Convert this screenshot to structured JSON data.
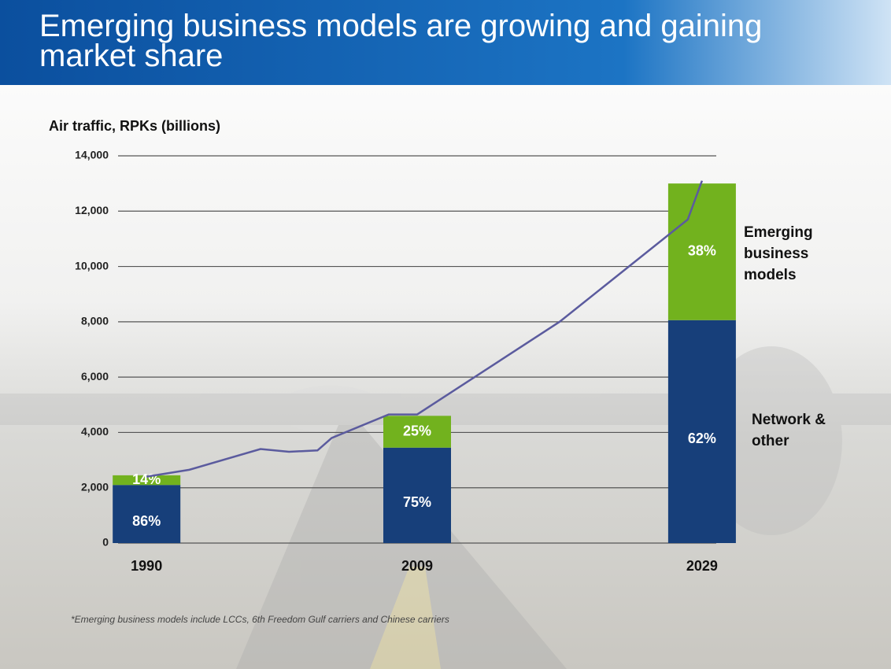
{
  "chart_data": {
    "type": "bar",
    "stacked": true,
    "title": "Emerging business models are growing and gaining market share",
    "y_label": "Air traffic, RPKs (billions)",
    "footnote": "*Emerging business models include LCCs, 6th Freedom Gulf carriers and Chinese carriers",
    "x": [
      1990,
      2009,
      2029
    ],
    "xlim": [
      1988,
      2030
    ],
    "xticks": [
      1990,
      2009,
      2029
    ],
    "ylim": [
      0,
      14000
    ],
    "yticks": [
      0,
      {
        "value": 2000,
        "label": "2,000"
      },
      {
        "value": 4000,
        "label": "4,000"
      },
      {
        "value": 6000,
        "label": "6,000"
      },
      {
        "value": 8000,
        "label": "8,000"
      },
      {
        "value": 10000,
        "label": "10,000"
      },
      {
        "value": 12000,
        "label": "12,000"
      },
      {
        "value": 14000,
        "label": "14,000"
      }
    ],
    "grid": true,
    "series": [
      {
        "name": "Network & other",
        "color": "#173f7a",
        "values": [
          2100,
          3450,
          8060
        ],
        "share_labels": [
          "86%",
          "75%",
          "62%"
        ]
      },
      {
        "name": "Emerging business models",
        "color": "#72b21e",
        "values": [
          350,
          1150,
          4940
        ],
        "share_labels": [
          "14%",
          "25%",
          "38%"
        ]
      }
    ],
    "overlay": {
      "type": "line",
      "color": "#5b5b9e",
      "x": [
        1990,
        1993,
        1998,
        2000,
        2002,
        2003,
        2007,
        2009,
        2019,
        2028,
        2029
      ],
      "values": [
        2400,
        2650,
        3400,
        3300,
        3350,
        3800,
        4650,
        4650,
        8000,
        11700,
        13100
      ]
    }
  }
}
